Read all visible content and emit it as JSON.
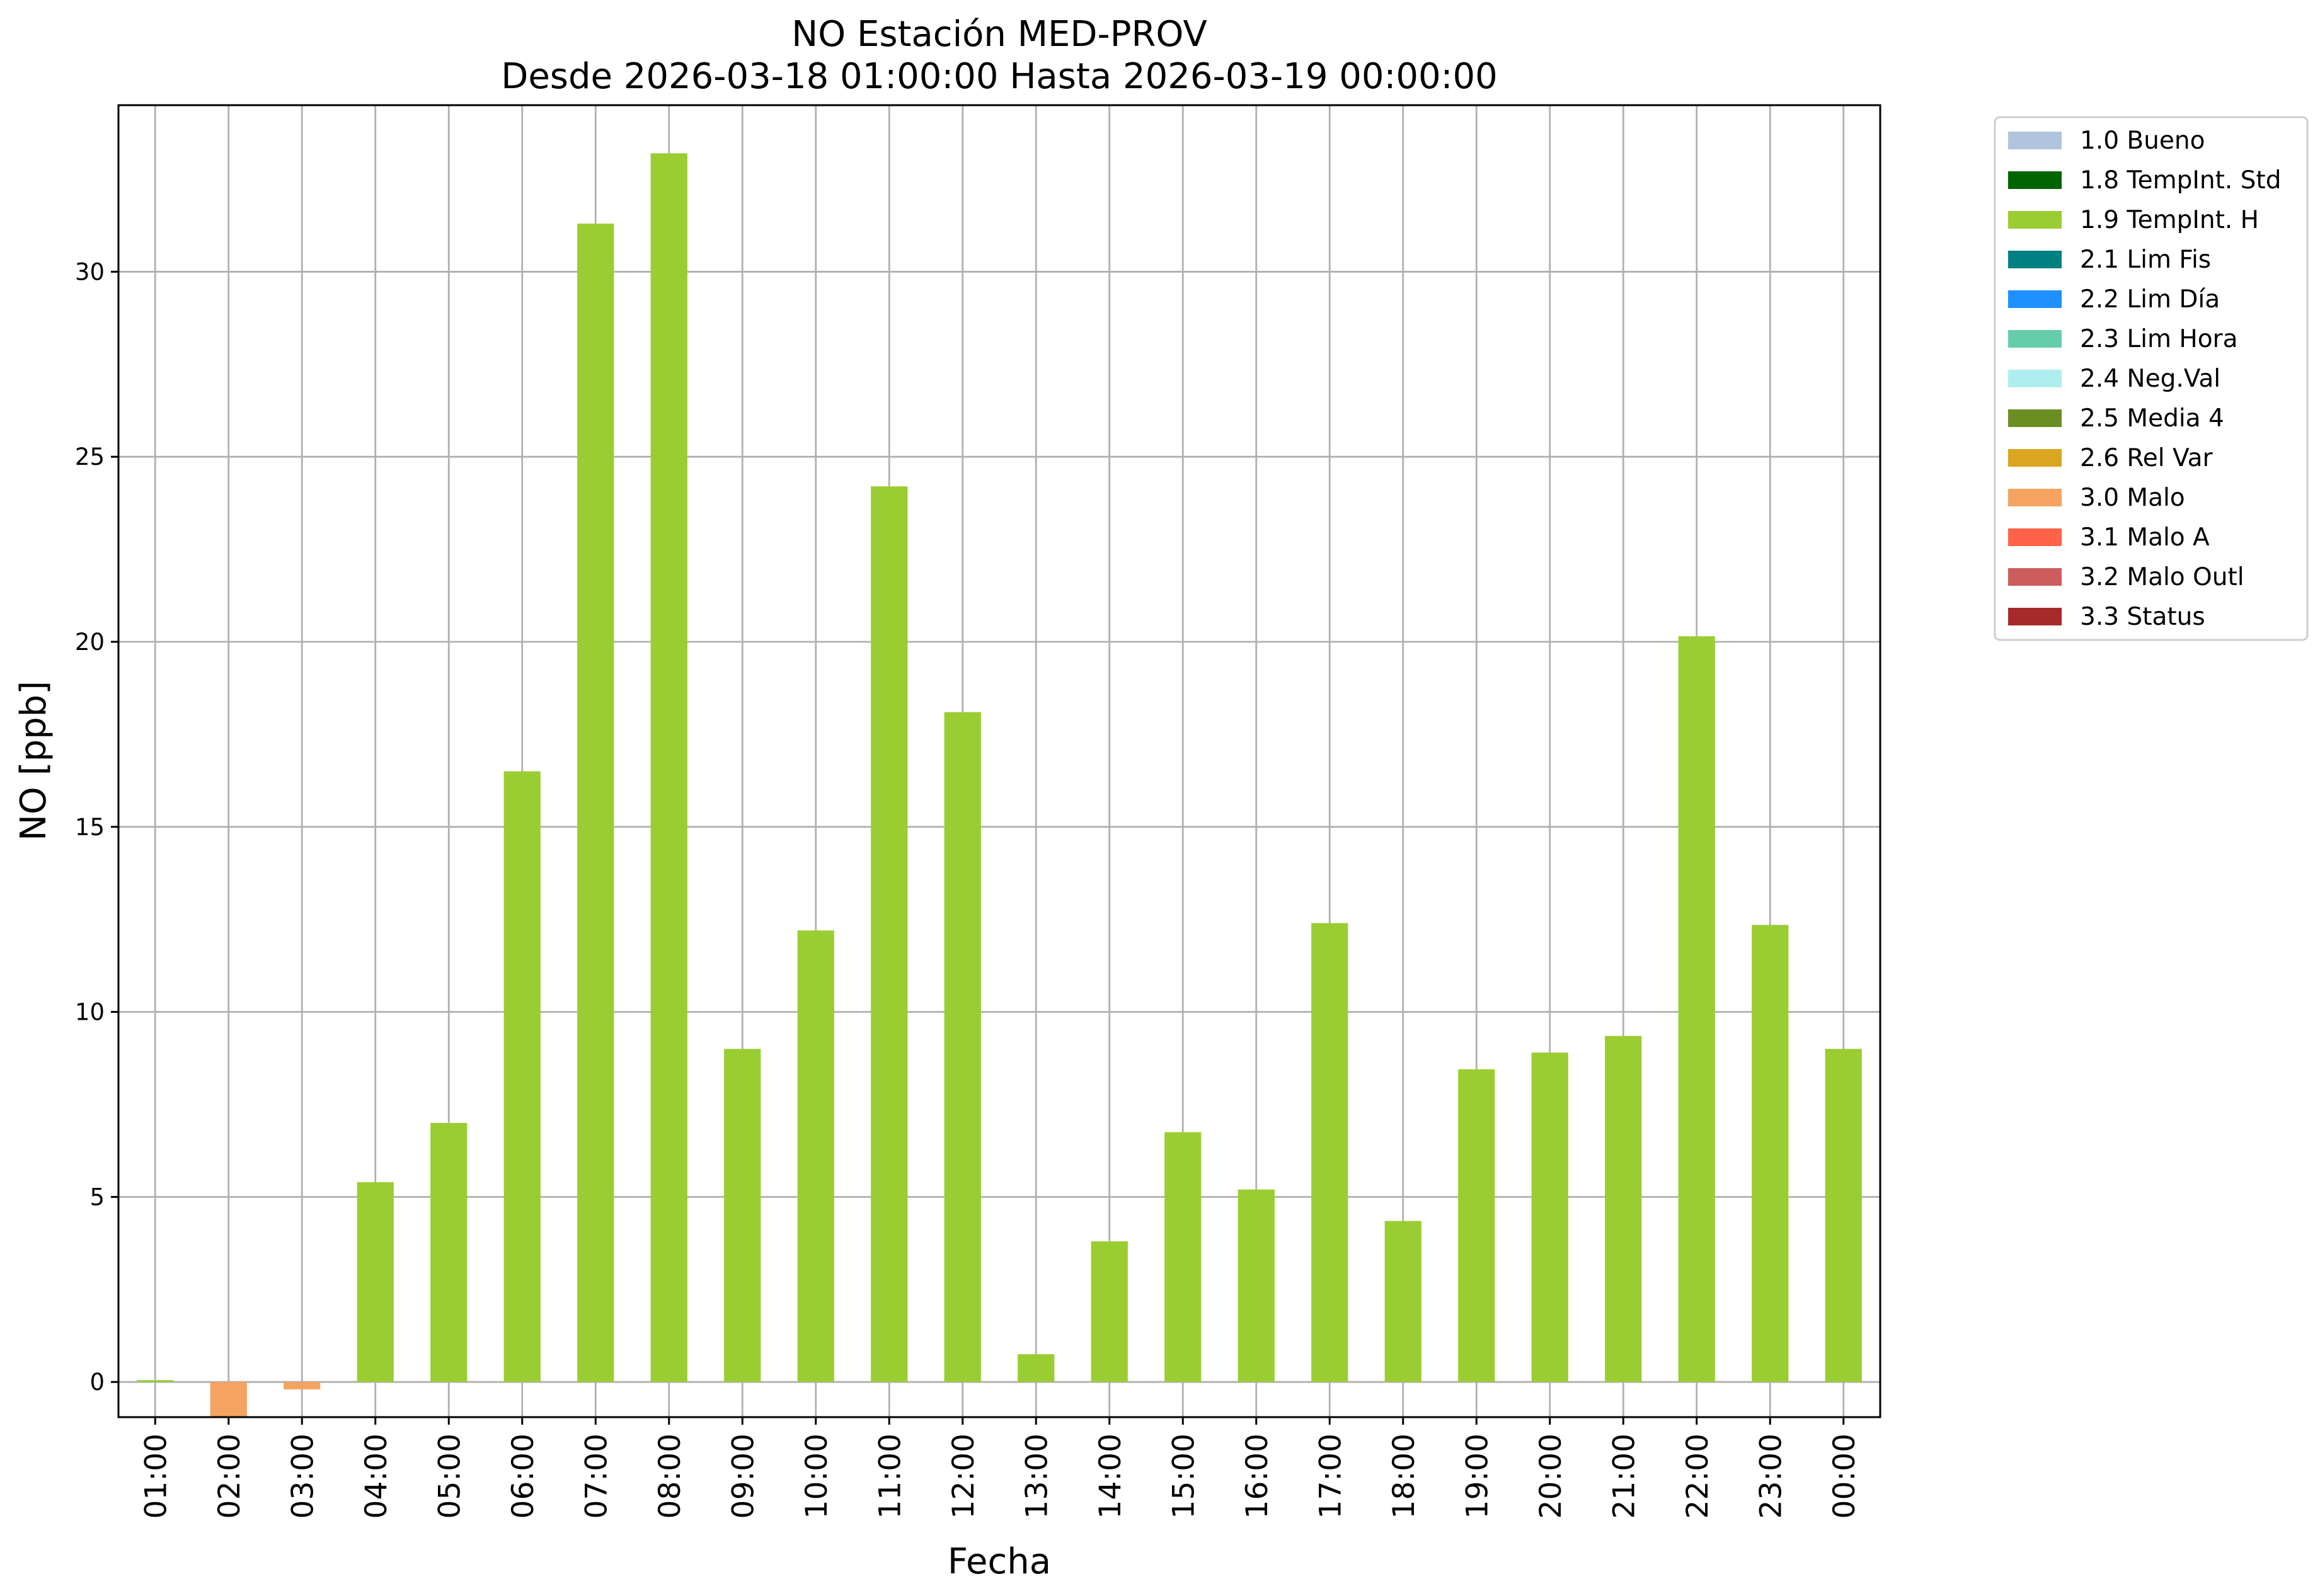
{
  "chart_data": {
    "type": "bar",
    "title": "NO Estación MED-PROV",
    "subtitle": "Desde 2026-03-18 01:00:00 Hasta 2026-03-19 00:00:00",
    "xlabel": "Fecha",
    "ylabel": "NO [ppb]",
    "ylim": [
      -0.95,
      34.5
    ],
    "yticks": [
      0,
      5,
      10,
      15,
      20,
      25,
      30
    ],
    "grid": true,
    "legend_position": "outside-top-right",
    "categories": [
      "01:00",
      "02:00",
      "03:00",
      "04:00",
      "05:00",
      "06:00",
      "07:00",
      "08:00",
      "09:00",
      "10:00",
      "11:00",
      "12:00",
      "13:00",
      "14:00",
      "15:00",
      "16:00",
      "17:00",
      "18:00",
      "19:00",
      "20:00",
      "21:00",
      "22:00",
      "23:00",
      "00:00"
    ],
    "bars": [
      {
        "x": "01:00",
        "value": 0.05,
        "flag": "1.9 TempInt. H"
      },
      {
        "x": "02:00",
        "value": -1.2,
        "flag": "3.0 Malo"
      },
      {
        "x": "03:00",
        "value": -0.2,
        "flag": "3.0 Malo"
      },
      {
        "x": "04:00",
        "value": 5.4,
        "flag": "1.9 TempInt. H"
      },
      {
        "x": "05:00",
        "value": 7.0,
        "flag": "1.9 TempInt. H"
      },
      {
        "x": "06:00",
        "value": 16.5,
        "flag": "1.9 TempInt. H"
      },
      {
        "x": "07:00",
        "value": 31.3,
        "flag": "1.9 TempInt. H"
      },
      {
        "x": "08:00",
        "value": 33.2,
        "flag": "1.9 TempInt. H"
      },
      {
        "x": "09:00",
        "value": 9.0,
        "flag": "1.9 TempInt. H"
      },
      {
        "x": "10:00",
        "value": 12.2,
        "flag": "1.9 TempInt. H"
      },
      {
        "x": "11:00",
        "value": 24.2,
        "flag": "1.9 TempInt. H"
      },
      {
        "x": "12:00",
        "value": 18.1,
        "flag": "1.9 TempInt. H"
      },
      {
        "x": "13:00",
        "value": 0.75,
        "flag": "1.9 TempInt. H"
      },
      {
        "x": "14:00",
        "value": 3.8,
        "flag": "1.9 TempInt. H"
      },
      {
        "x": "15:00",
        "value": 6.75,
        "flag": "1.9 TempInt. H"
      },
      {
        "x": "16:00",
        "value": 5.2,
        "flag": "1.9 TempInt. H"
      },
      {
        "x": "17:00",
        "value": 12.4,
        "flag": "1.9 TempInt. H"
      },
      {
        "x": "18:00",
        "value": 4.35,
        "flag": "1.9 TempInt. H"
      },
      {
        "x": "19:00",
        "value": 8.45,
        "flag": "1.9 TempInt. H"
      },
      {
        "x": "20:00",
        "value": 8.9,
        "flag": "1.9 TempInt. H"
      },
      {
        "x": "21:00",
        "value": 9.35,
        "flag": "1.9 TempInt. H"
      },
      {
        "x": "22:00",
        "value": 20.15,
        "flag": "1.9 TempInt. H"
      },
      {
        "x": "23:00",
        "value": 12.35,
        "flag": "1.9 TempInt. H"
      },
      {
        "x": "00:00",
        "value": 9.0,
        "flag": "1.9 TempInt. H"
      }
    ],
    "legend": [
      {
        "label": "1.0 Bueno",
        "color": "#b0c4de"
      },
      {
        "label": "1.8 TempInt. Std",
        "color": "#006400"
      },
      {
        "label": "1.9 TempInt. H",
        "color": "#9acd32"
      },
      {
        "label": "2.1 Lim Fis",
        "color": "#008080"
      },
      {
        "label": "2.2 Lim Día",
        "color": "#1e90ff"
      },
      {
        "label": "2.3 Lim Hora",
        "color": "#66cdaa"
      },
      {
        "label": "2.4 Neg.Val",
        "color": "#afeeee"
      },
      {
        "label": "2.5 Media 4",
        "color": "#6b8e23"
      },
      {
        "label": "2.6 Rel Var",
        "color": "#daa520"
      },
      {
        "label": "3.0 Malo",
        "color": "#f4a460"
      },
      {
        "label": "3.1 Malo A",
        "color": "#ff6347"
      },
      {
        "label": "3.2 Malo Outl",
        "color": "#cd5c5c"
      },
      {
        "label": "3.3 Status",
        "color": "#a52a2a"
      }
    ]
  }
}
